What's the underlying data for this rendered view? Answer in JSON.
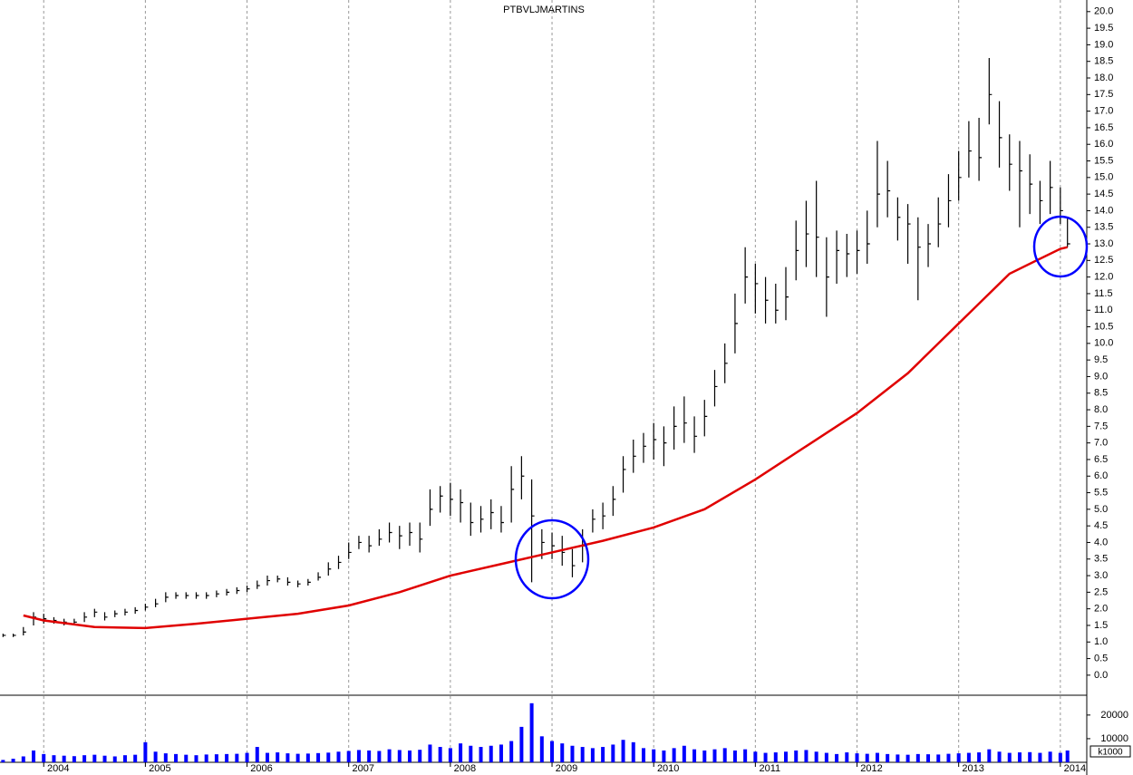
{
  "chart_data": {
    "type": "ohlc",
    "title": "PTBVLJMARTINS",
    "x": [
      2003.6,
      2003.7,
      2003.8,
      2003.9,
      2004.0,
      2004.1,
      2004.2,
      2004.3,
      2004.4,
      2004.5,
      2004.6,
      2004.7,
      2004.8,
      2004.9,
      2005.0,
      2005.1,
      2005.2,
      2005.3,
      2005.4,
      2005.5,
      2005.6,
      2005.7,
      2005.8,
      2005.9,
      2006.0,
      2006.1,
      2006.2,
      2006.3,
      2006.4,
      2006.5,
      2006.6,
      2006.7,
      2006.8,
      2006.9,
      2007.0,
      2007.1,
      2007.2,
      2007.3,
      2007.4,
      2007.5,
      2007.6,
      2007.7,
      2007.8,
      2007.9,
      2008.0,
      2008.1,
      2008.2,
      2008.3,
      2008.4,
      2008.5,
      2008.6,
      2008.7,
      2008.8,
      2008.9,
      2009.0,
      2009.1,
      2009.2,
      2009.3,
      2009.4,
      2009.5,
      2009.6,
      2009.7,
      2009.8,
      2009.9,
      2010.0,
      2010.1,
      2010.2,
      2010.3,
      2010.4,
      2010.5,
      2010.6,
      2010.7,
      2010.8,
      2010.9,
      2011.0,
      2011.1,
      2011.2,
      2011.3,
      2011.4,
      2011.5,
      2011.6,
      2011.7,
      2011.8,
      2011.9,
      2012.0,
      2012.1,
      2012.2,
      2012.3,
      2012.4,
      2012.5,
      2012.6,
      2012.7,
      2012.8,
      2012.9,
      2013.0,
      2013.1,
      2013.2,
      2013.3,
      2013.4,
      2013.5,
      2013.6,
      2013.7,
      2013.8,
      2013.9,
      2014.0,
      2014.07
    ],
    "high": [
      1.25,
      1.25,
      1.45,
      1.9,
      1.85,
      1.75,
      1.7,
      1.7,
      1.9,
      2.0,
      1.9,
      1.95,
      2.0,
      2.05,
      2.15,
      2.3,
      2.5,
      2.5,
      2.5,
      2.5,
      2.5,
      2.55,
      2.6,
      2.65,
      2.7,
      2.85,
      3.0,
      3.0,
      2.95,
      2.85,
      2.9,
      3.1,
      3.4,
      3.6,
      4.0,
      4.2,
      4.2,
      4.4,
      4.6,
      4.5,
      4.6,
      4.6,
      5.6,
      5.7,
      5.8,
      5.6,
      5.2,
      5.1,
      5.3,
      5.1,
      6.3,
      6.6,
      5.9,
      4.4,
      4.3,
      4.2,
      3.8,
      4.4,
      5.0,
      5.2,
      5.7,
      6.6,
      7.1,
      7.3,
      7.6,
      7.5,
      8.1,
      8.4,
      7.8,
      8.3,
      9.2,
      10.0,
      11.5,
      12.9,
      12.4,
      12.0,
      11.8,
      12.3,
      13.7,
      14.3,
      14.9,
      13.2,
      13.4,
      13.3,
      13.4,
      14.0,
      16.1,
      15.5,
      14.4,
      14.2,
      13.8,
      13.6,
      14.4,
      15.1,
      15.8,
      16.7,
      16.8,
      18.6,
      17.3,
      16.3,
      16.1,
      15.7,
      14.9,
      15.5,
      14.7,
      13.8
    ],
    "low": [
      1.15,
      1.15,
      1.2,
      1.5,
      1.55,
      1.55,
      1.5,
      1.5,
      1.6,
      1.75,
      1.65,
      1.75,
      1.8,
      1.85,
      1.95,
      2.05,
      2.2,
      2.3,
      2.3,
      2.3,
      2.3,
      2.35,
      2.4,
      2.45,
      2.5,
      2.6,
      2.7,
      2.8,
      2.7,
      2.65,
      2.7,
      2.85,
      3.0,
      3.2,
      3.5,
      3.8,
      3.7,
      3.9,
      4.0,
      3.8,
      3.9,
      3.7,
      4.5,
      4.9,
      4.8,
      4.6,
      4.2,
      4.3,
      4.4,
      4.3,
      4.6,
      5.3,
      2.8,
      3.5,
      3.5,
      3.3,
      2.95,
      3.4,
      4.3,
      4.4,
      4.8,
      5.5,
      6.1,
      6.4,
      6.5,
      6.3,
      6.8,
      7.0,
      6.7,
      7.2,
      8.1,
      8.8,
      9.7,
      11.2,
      10.9,
      10.6,
      10.6,
      10.7,
      11.9,
      12.3,
      12.0,
      10.8,
      11.8,
      12.0,
      12.1,
      12.4,
      13.5,
      13.8,
      13.1,
      12.4,
      11.3,
      12.3,
      12.9,
      13.5,
      14.3,
      15.0,
      14.9,
      16.6,
      15.3,
      14.6,
      13.5,
      13.9,
      13.6,
      13.9,
      13.6,
      12.9
    ],
    "close": [
      1.2,
      1.2,
      1.3,
      1.75,
      1.7,
      1.65,
      1.6,
      1.6,
      1.75,
      1.9,
      1.75,
      1.85,
      1.9,
      1.95,
      2.05,
      2.15,
      2.35,
      2.4,
      2.4,
      2.4,
      2.4,
      2.45,
      2.5,
      2.55,
      2.6,
      2.7,
      2.85,
      2.9,
      2.8,
      2.75,
      2.8,
      2.95,
      3.2,
      3.4,
      3.7,
      4.0,
      3.9,
      4.1,
      4.3,
      4.2,
      4.3,
      4.1,
      5.0,
      5.4,
      5.3,
      5.2,
      4.6,
      4.7,
      4.9,
      4.6,
      5.6,
      6.0,
      4.8,
      4.0,
      3.9,
      3.7,
      3.3,
      3.9,
      4.7,
      4.8,
      5.3,
      6.2,
      6.6,
      6.9,
      7.1,
      7.0,
      7.5,
      7.6,
      7.2,
      7.8,
      8.7,
      9.4,
      10.6,
      12.0,
      11.8,
      11.3,
      11.0,
      11.4,
      12.8,
      13.3,
      13.2,
      12.0,
      12.8,
      12.7,
      12.8,
      13.0,
      14.5,
      14.6,
      13.8,
      13.6,
      12.9,
      13.0,
      13.6,
      14.3,
      15.0,
      15.8,
      15.6,
      17.5,
      16.2,
      15.4,
      15.2,
      14.8,
      14.3,
      14.7,
      14.0,
      13.0
    ],
    "color": "#000000",
    "xlim": [
      2003.57,
      2014.26
    ],
    "xticks": [
      2004,
      2005,
      2006,
      2007,
      2008,
      2009,
      2010,
      2011,
      2012,
      2013,
      2014
    ],
    "grid": true,
    "ylim": [
      -0.55,
      20.35
    ],
    "yticks": [
      {
        "value": 0,
        "label": "0.0"
      },
      {
        "value": 0.5,
        "label": "0.5"
      },
      {
        "value": 1,
        "label": "1.0"
      },
      {
        "value": 1.5,
        "label": "1.5"
      },
      {
        "value": 2,
        "label": "2.0"
      },
      {
        "value": 2.5,
        "label": "2.5"
      },
      {
        "value": 3,
        "label": "3.0"
      },
      {
        "value": 3.5,
        "label": "3.5"
      },
      {
        "value": 4,
        "label": "4.0"
      },
      {
        "value": 4.5,
        "label": "4.5"
      },
      {
        "value": 5,
        "label": "5.0"
      },
      {
        "value": 5.5,
        "label": "5.5"
      },
      {
        "value": 6,
        "label": "6.0"
      },
      {
        "value": 6.5,
        "label": "6.5"
      },
      {
        "value": 7,
        "label": "7.0"
      },
      {
        "value": 7.5,
        "label": "7.5"
      },
      {
        "value": 8,
        "label": "8.0"
      },
      {
        "value": 8.5,
        "label": "8.5"
      },
      {
        "value": 9,
        "label": "9.0"
      },
      {
        "value": 9.5,
        "label": "9.5"
      },
      {
        "value": 10,
        "label": "10.0"
      },
      {
        "value": 10.5,
        "label": "10.5"
      },
      {
        "value": 11,
        "label": "11.0"
      },
      {
        "value": 11.5,
        "label": "11.5"
      },
      {
        "value": 12,
        "label": "12.0"
      },
      {
        "value": 12.5,
        "label": "12.5"
      },
      {
        "value": 13,
        "label": "13.0"
      },
      {
        "value": 13.5,
        "label": "13.5"
      },
      {
        "value": 14,
        "label": "14.0"
      },
      {
        "value": 14.5,
        "label": "14.5"
      },
      {
        "value": 15,
        "label": "15.0"
      },
      {
        "value": 15.5,
        "label": "15.5"
      },
      {
        "value": 16,
        "label": "16.0"
      },
      {
        "value": 16.5,
        "label": "16.5"
      },
      {
        "value": 17,
        "label": "17.0"
      },
      {
        "value": 17.5,
        "label": "17.5"
      },
      {
        "value": 18,
        "label": "18.0"
      },
      {
        "value": 18.5,
        "label": "18.5"
      },
      {
        "value": 19,
        "label": "19.0"
      },
      {
        "value": 19.5,
        "label": "19.5"
      },
      {
        "value": 20,
        "label": "20.0"
      }
    ],
    "moving_average": {
      "color": "#e00000",
      "x": [
        2003.8,
        2004.0,
        2004.5,
        2005.0,
        2005.5,
        2006.0,
        2006.5,
        2007.0,
        2007.5,
        2008.0,
        2008.5,
        2009.0,
        2009.5,
        2010.0,
        2010.5,
        2011.0,
        2011.5,
        2012.0,
        2012.5,
        2013.0,
        2013.5,
        2014.0,
        2014.07
      ],
      "values": [
        1.8,
        1.65,
        1.45,
        1.42,
        1.55,
        1.7,
        1.85,
        2.1,
        2.5,
        3.0,
        3.35,
        3.7,
        4.05,
        4.45,
        5.0,
        5.9,
        6.9,
        7.9,
        9.1,
        10.6,
        12.1,
        12.85,
        12.9
      ]
    },
    "volume": {
      "color": "#0000ff",
      "unit_label": "k1000",
      "values": [
        1000,
        1500,
        2500,
        5000,
        3500,
        3000,
        2800,
        2600,
        3000,
        3200,
        2800,
        2500,
        3000,
        3200,
        8500,
        4500,
        3800,
        3500,
        3200,
        3000,
        3300,
        3400,
        3500,
        3600,
        4000,
        6500,
        4000,
        4200,
        3800,
        3600,
        3700,
        3900,
        4100,
        4500,
        4800,
        5200,
        5000,
        4800,
        5500,
        5200,
        5000,
        5300,
        7500,
        6500,
        6000,
        8000,
        7000,
        6500,
        7000,
        7500,
        9000,
        15000,
        25000,
        11000,
        9000,
        8000,
        7000,
        6500,
        6000,
        6500,
        7500,
        9500,
        8500,
        6000,
        5500,
        5000,
        6000,
        7000,
        5500,
        5000,
        5500,
        6000,
        5000,
        5500,
        4500,
        4000,
        4200,
        4500,
        5000,
        5200,
        4500,
        4000,
        3500,
        4200,
        3800,
        3600,
        4000,
        3500,
        3300,
        3200,
        3500,
        3400,
        3300,
        3600,
        3800,
        4000,
        4200,
        5500,
        4500,
        4000,
        4200,
        4300,
        4000,
        4500,
        4000,
        5000
      ],
      "ylim": [
        0,
        28000
      ],
      "yticks": [
        10000,
        20000
      ]
    }
  }
}
